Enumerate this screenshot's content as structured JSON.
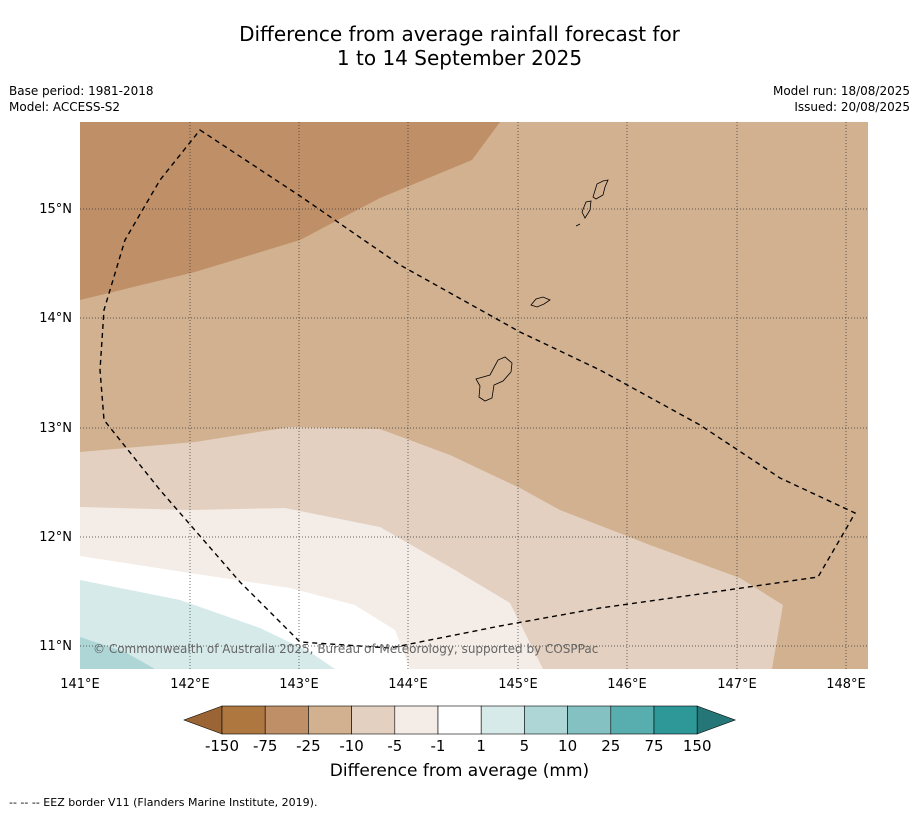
{
  "title": {
    "line1": "Difference from average rainfall forecast for",
    "line2": "1 to 14 September 2025"
  },
  "meta": {
    "base_period": "Base period: 1981-2018",
    "model": "Model: ACCESS-S2",
    "model_run": "Model run: 18/08/2025",
    "issued": "Issued: 20/08/2025"
  },
  "map": {
    "lon_labels": [
      "141°E",
      "142°E",
      "143°E",
      "144°E",
      "145°E",
      "146°E",
      "147°E",
      "148°E"
    ],
    "lat_labels": [
      "15°N",
      "14°N",
      "13°N",
      "12°N",
      "11°N"
    ],
    "copyright": "© Commonwealth of Australia 2025, Bureau of Meteorology, supported by COSPPac"
  },
  "colorbar": {
    "title": "Difference from average (mm)",
    "ticks": [
      "-150",
      "-75",
      "-25",
      "-10",
      "-5",
      "-1",
      "1",
      "5",
      "10",
      "25",
      "75",
      "150"
    ],
    "colors": [
      "#9a6434",
      "#ad773f",
      "#bf9068",
      "#d1b190",
      "#e3d0c0",
      "#f4ece6",
      "#ffffff",
      "#d6eaea",
      "#aed6d6",
      "#83c1c2",
      "#58adae",
      "#2e9898",
      "#257676"
    ]
  },
  "footnote": "--  --  -- EEZ border V11 (Flanders Marine Institute, 2019)."
}
